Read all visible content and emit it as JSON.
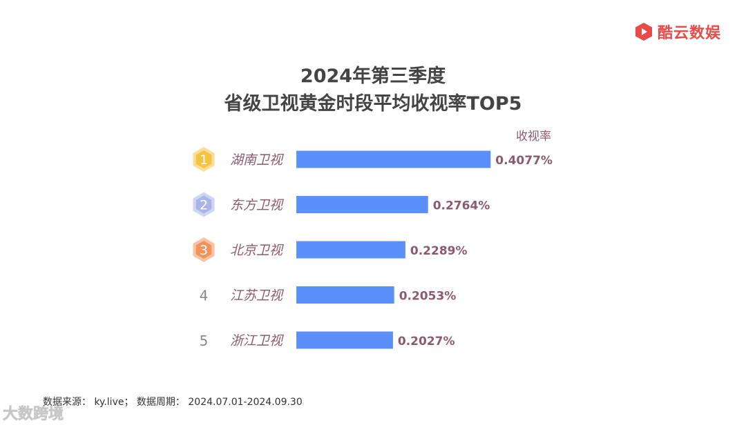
{
  "brand": {
    "name": "酷云数娱",
    "color": "#e84a4a"
  },
  "watermark": "大数跨境",
  "chart_data": {
    "type": "bar",
    "orientation": "horizontal",
    "title_line1": "2024年第三季度",
    "title_line2": "省级卫视黄金时段平均收视率TOP5",
    "value_label": "收视率",
    "categories": [
      "湖南卫视",
      "东方卫视",
      "北京卫视",
      "江苏卫视",
      "浙江卫视"
    ],
    "ranks": [
      "1",
      "2",
      "3",
      "4",
      "5"
    ],
    "values": [
      0.4077,
      0.2764,
      0.2289,
      0.2053,
      0.2027
    ],
    "value_labels": [
      "0.4077%",
      "0.2764%",
      "0.2289%",
      "0.2053%",
      "0.2027%"
    ],
    "unit": "%",
    "bar_color": "#5b8ff9",
    "label_color": "#8c5a6e",
    "badge_colors": [
      "#f5c342",
      "#a9b4e8",
      "#f2935a"
    ],
    "grid": false,
    "legend": "none"
  },
  "source": "数据来源：  ky.live；  数据周期：  2024.07.01-2024.09.30"
}
